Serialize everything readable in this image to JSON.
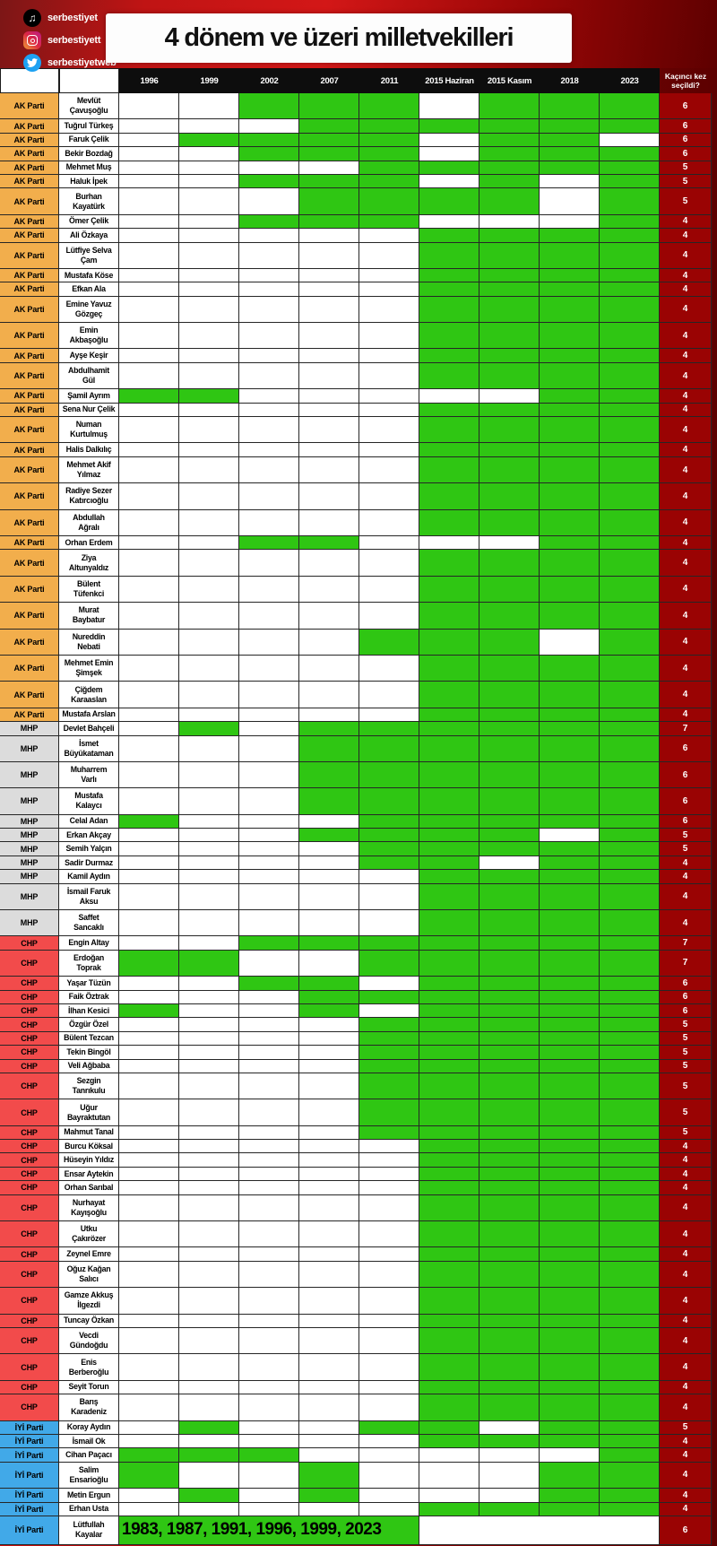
{
  "header": {
    "title": "4 dönem ve üzeri milletvekilleri",
    "social": [
      {
        "icon": "tiktok-icon",
        "label": "serbestiyet"
      },
      {
        "icon": "instagram-icon",
        "label": "serbestiyett"
      },
      {
        "icon": "twitter-icon",
        "label": "serbestiyetweb"
      }
    ]
  },
  "chart_data": {
    "type": "table",
    "title": "4 dönem ve üzeri milletvekilleri",
    "legend": "green cell = elected in that election; elected lists indices into year_columns",
    "year_columns": [
      "1996",
      "1999",
      "2002",
      "2007",
      "2011",
      "2015 Haziran",
      "2015 Kasım",
      "2018",
      "2023"
    ],
    "count_header": "Kaçıncı kez seçildi?",
    "green": "#2fc613",
    "party_colors": {
      "AK Parti": "#f2ae4c",
      "MHP": "#dcdcdc",
      "CHP": "#f24b4b",
      "İYİ Parti": "#41a9e8"
    },
    "rows": [
      {
        "party": "AK Parti",
        "name": "Mevlüt\nÇavuşoğlu",
        "elected": [
          2,
          3,
          4,
          6,
          7,
          8
        ],
        "count": 6
      },
      {
        "party": "AK Parti",
        "name": "Tuğrul Türkeş",
        "elected": [
          3,
          4,
          5,
          6,
          7,
          8
        ],
        "count": 6
      },
      {
        "party": "AK Parti",
        "name": "Faruk Çelik",
        "elected": [
          1,
          2,
          3,
          4,
          6,
          7
        ],
        "count": 6
      },
      {
        "party": "AK Parti",
        "name": "Bekir Bozdağ",
        "elected": [
          2,
          3,
          4,
          6,
          7,
          8
        ],
        "count": 6
      },
      {
        "party": "AK Parti",
        "name": "Mehmet Muş",
        "elected": [
          4,
          5,
          6,
          7,
          8
        ],
        "count": 5
      },
      {
        "party": "AK Parti",
        "name": "Haluk İpek",
        "elected": [
          2,
          3,
          4,
          6,
          8
        ],
        "count": 5
      },
      {
        "party": "AK Parti",
        "name": "Burhan\nKayatürk",
        "elected": [
          3,
          4,
          5,
          6,
          8
        ],
        "count": 5
      },
      {
        "party": "AK Parti",
        "name": "Ömer Çelik",
        "elected": [
          2,
          3,
          4,
          8
        ],
        "count": 4
      },
      {
        "party": "AK Parti",
        "name": "Ali Özkaya",
        "elected": [
          5,
          6,
          7,
          8
        ],
        "count": 4
      },
      {
        "party": "AK Parti",
        "name": "Lütfiye Selva\nÇam",
        "elected": [
          5,
          6,
          7,
          8
        ],
        "count": 4
      },
      {
        "party": "AK Parti",
        "name": "Mustafa Köse",
        "elected": [
          5,
          6,
          7,
          8
        ],
        "count": 4
      },
      {
        "party": "AK Parti",
        "name": "Efkan Ala",
        "elected": [
          5,
          6,
          7,
          8
        ],
        "count": 4
      },
      {
        "party": "AK Parti",
        "name": "Emine Yavuz\nGözgeç",
        "elected": [
          5,
          6,
          7,
          8
        ],
        "count": 4
      },
      {
        "party": "AK Parti",
        "name": "Emin\nAkbaşoğlu",
        "elected": [
          5,
          6,
          7,
          8
        ],
        "count": 4
      },
      {
        "party": "AK Parti",
        "name": "Ayşe Keşir",
        "elected": [
          5,
          6,
          7,
          8
        ],
        "count": 4
      },
      {
        "party": "AK Parti",
        "name": "Abdulhamit\nGül",
        "elected": [
          5,
          6,
          7,
          8
        ],
        "count": 4
      },
      {
        "party": "AK Parti",
        "name": "Şamil Ayrım",
        "elected": [
          0,
          1,
          7,
          8
        ],
        "count": 4
      },
      {
        "party": "AK Parti",
        "name": "Sena Nur Çelik",
        "elected": [
          5,
          6,
          7,
          8
        ],
        "count": 4
      },
      {
        "party": "AK Parti",
        "name": "Numan\nKurtulmuş",
        "elected": [
          5,
          6,
          7,
          8
        ],
        "count": 4
      },
      {
        "party": "AK Parti",
        "name": "Halis Dalkılıç",
        "elected": [
          5,
          6,
          7,
          8
        ],
        "count": 4
      },
      {
        "party": "AK Parti",
        "name": "Mehmet Akif\nYılmaz",
        "elected": [
          5,
          6,
          7,
          8
        ],
        "count": 4
      },
      {
        "party": "AK Parti",
        "name": "Radiye Sezer\nKatırcıoğlu",
        "elected": [
          5,
          6,
          7,
          8
        ],
        "count": 4
      },
      {
        "party": "AK Parti",
        "name": "Abdullah\nAğralı",
        "elected": [
          5,
          6,
          7,
          8
        ],
        "count": 4
      },
      {
        "party": "AK Parti",
        "name": "Orhan Erdem",
        "elected": [
          2,
          3,
          7,
          8
        ],
        "count": 4
      },
      {
        "party": "AK Parti",
        "name": "Ziya\nAltunyaldız",
        "elected": [
          5,
          6,
          7,
          8
        ],
        "count": 4
      },
      {
        "party": "AK Parti",
        "name": "Bülent\nTüfenkci",
        "elected": [
          5,
          6,
          7,
          8
        ],
        "count": 4
      },
      {
        "party": "AK Parti",
        "name": "Murat\nBaybatur",
        "elected": [
          5,
          6,
          7,
          8
        ],
        "count": 4
      },
      {
        "party": "AK Parti",
        "name": "Nureddin\nNebati",
        "elected": [
          4,
          5,
          6,
          8
        ],
        "count": 4
      },
      {
        "party": "AK Parti",
        "name": "Mehmet Emin\nŞimşek",
        "elected": [
          5,
          6,
          7,
          8
        ],
        "count": 4
      },
      {
        "party": "AK Parti",
        "name": "Çiğdem\nKaraaslan",
        "elected": [
          5,
          6,
          7,
          8
        ],
        "count": 4
      },
      {
        "party": "AK Parti",
        "name": "Mustafa Arslan",
        "elected": [
          5,
          6,
          7,
          8
        ],
        "count": 4
      },
      {
        "party": "MHP",
        "name": "Devlet Bahçeli",
        "elected": [
          1,
          3,
          4,
          5,
          6,
          7,
          8
        ],
        "count": 7
      },
      {
        "party": "MHP",
        "name": "İsmet\nBüyükataman",
        "elected": [
          3,
          4,
          5,
          6,
          7,
          8
        ],
        "count": 6
      },
      {
        "party": "MHP",
        "name": "Muharrem\nVarlı",
        "elected": [
          3,
          4,
          5,
          6,
          7,
          8
        ],
        "count": 6
      },
      {
        "party": "MHP",
        "name": "Mustafa\nKalaycı",
        "elected": [
          3,
          4,
          5,
          6,
          7,
          8
        ],
        "count": 6
      },
      {
        "party": "MHP",
        "name": "Celal Adan",
        "elected": [
          0,
          4,
          5,
          6,
          7,
          8
        ],
        "count": 6
      },
      {
        "party": "MHP",
        "name": "Erkan Akçay",
        "elected": [
          3,
          4,
          5,
          6,
          8
        ],
        "count": 5
      },
      {
        "party": "MHP",
        "name": "Semih Yalçın",
        "elected": [
          4,
          5,
          6,
          7,
          8
        ],
        "count": 5
      },
      {
        "party": "MHP",
        "name": "Sadir Durmaz",
        "elected": [
          4,
          5,
          7,
          8
        ],
        "count": 4
      },
      {
        "party": "MHP",
        "name": "Kamil Aydın",
        "elected": [
          5,
          6,
          7,
          8
        ],
        "count": 4
      },
      {
        "party": "MHP",
        "name": "İsmail Faruk\nAksu",
        "elected": [
          5,
          6,
          7,
          8
        ],
        "count": 4
      },
      {
        "party": "MHP",
        "name": "Saffet\nSancaklı",
        "elected": [
          5,
          6,
          7,
          8
        ],
        "count": 4
      },
      {
        "party": "CHP",
        "name": "Engin Altay",
        "elected": [
          2,
          3,
          4,
          5,
          6,
          7,
          8
        ],
        "count": 7
      },
      {
        "party": "CHP",
        "name": "Erdoğan\nToprak",
        "elected": [
          0,
          1,
          4,
          5,
          6,
          7,
          8
        ],
        "count": 7
      },
      {
        "party": "CHP",
        "name": "Yaşar Tüzün",
        "elected": [
          2,
          3,
          5,
          6,
          7,
          8
        ],
        "count": 6
      },
      {
        "party": "CHP",
        "name": "Faik Öztrak",
        "elected": [
          3,
          4,
          5,
          6,
          7,
          8
        ],
        "count": 6
      },
      {
        "party": "CHP",
        "name": "İlhan Kesici",
        "elected": [
          0,
          3,
          5,
          6,
          7,
          8
        ],
        "count": 6
      },
      {
        "party": "CHP",
        "name": "Özgür Özel",
        "elected": [
          4,
          5,
          6,
          7,
          8
        ],
        "count": 5
      },
      {
        "party": "CHP",
        "name": "Bülent Tezcan",
        "elected": [
          4,
          5,
          6,
          7,
          8
        ],
        "count": 5
      },
      {
        "party": "CHP",
        "name": "Tekin Bingöl",
        "elected": [
          4,
          5,
          6,
          7,
          8
        ],
        "count": 5
      },
      {
        "party": "CHP",
        "name": "Veli Ağbaba",
        "elected": [
          4,
          5,
          6,
          7,
          8
        ],
        "count": 5
      },
      {
        "party": "CHP",
        "name": "Sezgin\nTanrıkulu",
        "elected": [
          4,
          5,
          6,
          7,
          8
        ],
        "count": 5
      },
      {
        "party": "CHP",
        "name": "Uğur\nBayraktutan",
        "elected": [
          4,
          5,
          6,
          7,
          8
        ],
        "count": 5
      },
      {
        "party": "CHP",
        "name": "Mahmut Tanal",
        "elected": [
          4,
          5,
          6,
          7,
          8
        ],
        "count": 5
      },
      {
        "party": "CHP",
        "name": "Burcu Köksal",
        "elected": [
          5,
          6,
          7,
          8
        ],
        "count": 4
      },
      {
        "party": "CHP",
        "name": "Hüseyin Yıldız",
        "elected": [
          5,
          6,
          7,
          8
        ],
        "count": 4
      },
      {
        "party": "CHP",
        "name": "Ensar Aytekin",
        "elected": [
          5,
          6,
          7,
          8
        ],
        "count": 4
      },
      {
        "party": "CHP",
        "name": "Orhan Sarıbal",
        "elected": [
          5,
          6,
          7,
          8
        ],
        "count": 4
      },
      {
        "party": "CHP",
        "name": "Nurhayat\nKayışoğlu",
        "elected": [
          5,
          6,
          7,
          8
        ],
        "count": 4
      },
      {
        "party": "CHP",
        "name": "Utku\nÇakırözer",
        "elected": [
          5,
          6,
          7,
          8
        ],
        "count": 4
      },
      {
        "party": "CHP",
        "name": "Zeynel Emre",
        "elected": [
          5,
          6,
          7,
          8
        ],
        "count": 4
      },
      {
        "party": "CHP",
        "name": "Oğuz Kağan\nSalıcı",
        "elected": [
          5,
          6,
          7,
          8
        ],
        "count": 4
      },
      {
        "party": "CHP",
        "name": "Gamze Akkuş\nİlgezdi",
        "elected": [
          5,
          6,
          7,
          8
        ],
        "count": 4
      },
      {
        "party": "CHP",
        "name": "Tuncay Özkan",
        "elected": [
          5,
          6,
          7,
          8
        ],
        "count": 4
      },
      {
        "party": "CHP",
        "name": "Vecdi\nGündoğdu",
        "elected": [
          5,
          6,
          7,
          8
        ],
        "count": 4
      },
      {
        "party": "CHP",
        "name": "Enis\nBerberoğlu",
        "elected": [
          5,
          6,
          7,
          8
        ],
        "count": 4
      },
      {
        "party": "CHP",
        "name": "Seyit Torun",
        "elected": [
          5,
          6,
          7,
          8
        ],
        "count": 4
      },
      {
        "party": "CHP",
        "name": "Barış\nKaradeniz",
        "elected": [
          5,
          6,
          7,
          8
        ],
        "count": 4
      },
      {
        "party": "İYİ Parti",
        "name": "Koray Aydın",
        "elected": [
          1,
          4,
          5,
          7,
          8
        ],
        "count": 5
      },
      {
        "party": "İYİ Parti",
        "name": "İsmail Ok",
        "elected": [
          5,
          6,
          7,
          8
        ],
        "count": 4
      },
      {
        "party": "İYİ Parti",
        "name": "Cihan Paçacı",
        "elected": [
          0,
          1,
          2,
          8
        ],
        "count": 4
      },
      {
        "party": "İYİ Parti",
        "name": "Salim\nEnsarioğlu",
        "elected": [
          0,
          3,
          7,
          8
        ],
        "count": 4
      },
      {
        "party": "İYİ Parti",
        "name": "Metin Ergun",
        "elected": [
          1,
          3,
          7,
          8
        ],
        "count": 4
      },
      {
        "party": "İYİ Parti",
        "name": "Erhan Usta",
        "elected": [
          5,
          6,
          7,
          8
        ],
        "count": 4
      },
      {
        "party": "İYİ Parti",
        "name": "Lütfullah\nKayalar",
        "elected": [],
        "banner": "1983, 1987, 1991, 1996, 1999, 2023",
        "count": 6
      }
    ]
  }
}
